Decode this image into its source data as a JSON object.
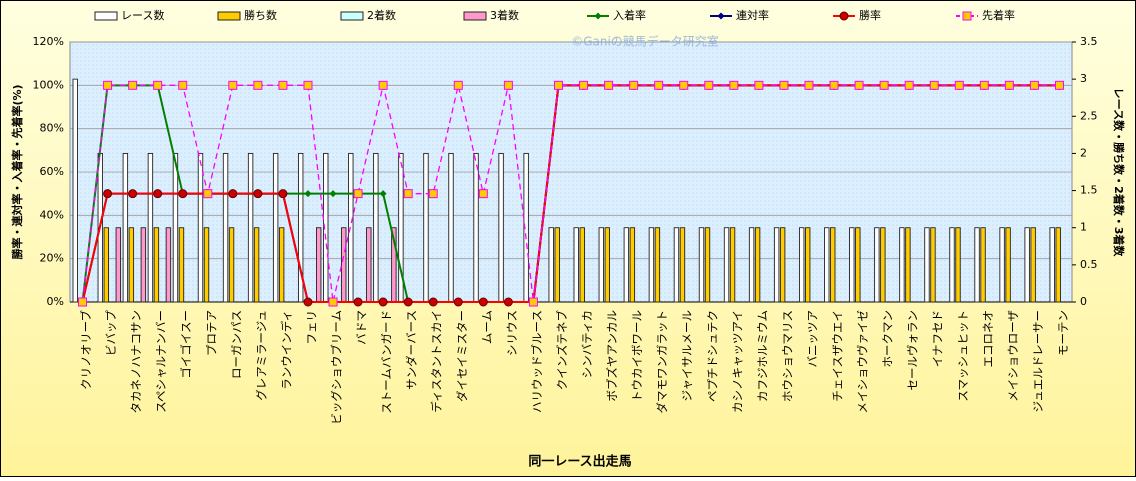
{
  "chart_data": {
    "type": "combo",
    "watermark": "©Ganiの競馬データ研究室",
    "x_label": "同一レース出走馬",
    "y_label": "勝率・連対率・入着率・先着率(%)",
    "y2_label": "レース数・勝ち数・2着数・3着数",
    "categories": [
      "クリノオリーブ",
      "ビバップ",
      "タカネノハナコサン",
      "スペシャルナンバー",
      "ゴイゴイスー",
      "プロテア",
      "ローガンパス",
      "グレアミラージュ",
      "ランウインディ",
      "フェリ",
      "ビッグショウブリーム",
      "バドマ",
      "ストームバンガード",
      "サンダーバース",
      "ディスタントスカイ",
      "ダイセイミスター",
      "ムーム",
      "シリウス",
      "ハリウッドブルース",
      "クインズテネブ",
      "シンバティカ",
      "ボブズヤアンカル",
      "トウカイボワール",
      "ダマモワンガラット",
      "ジャイサルメール",
      "ペプチドシュテク",
      "カシノキャッツアイ",
      "カフジホルミウム",
      "ホウショウマリス",
      "バニッツア",
      "チェイスザウエイ",
      "メイショウヴァイゼ",
      "ホークマン",
      "セールヴォラン",
      "イナフセド",
      "スマッシュヒット",
      "エコロネオ",
      "メイショウローザ",
      "ジュエルドレーサー",
      "モーテン"
    ],
    "ylim": [
      0,
      120
    ],
    "yticks": [
      {
        "value": 0,
        "label": "0%"
      },
      {
        "value": 20,
        "label": "20%"
      },
      {
        "value": 40,
        "label": "40%"
      },
      {
        "value": 60,
        "label": "60%"
      },
      {
        "value": 80,
        "label": "80%"
      },
      {
        "value": 100,
        "label": "100%"
      },
      {
        "value": 120,
        "label": "120%"
      }
    ],
    "y2lim": [
      0,
      3.5
    ],
    "y2ticks": [
      0,
      0.5,
      1,
      1.5,
      2,
      2.5,
      3,
      3.5
    ],
    "grid": true,
    "series": [
      {
        "name": "レース数",
        "type": "bar",
        "axis": "y2",
        "color": "#ffffff",
        "values": [
          3,
          2,
          2,
          2,
          2,
          2,
          2,
          2,
          2,
          2,
          2,
          2,
          2,
          2,
          2,
          2,
          2,
          2,
          2,
          1,
          1,
          1,
          1,
          1,
          1,
          1,
          1,
          1,
          1,
          1,
          1,
          1,
          1,
          1,
          1,
          1,
          1,
          1,
          1,
          1
        ]
      },
      {
        "name": "勝ち数",
        "type": "bar",
        "axis": "y2",
        "color": "#ffcc00",
        "values": [
          0,
          1,
          1,
          1,
          1,
          1,
          1,
          1,
          1,
          0,
          0,
          0,
          0,
          0,
          0,
          0,
          0,
          0,
          0,
          1,
          1,
          1,
          1,
          1,
          1,
          1,
          1,
          1,
          1,
          1,
          1,
          1,
          1,
          1,
          1,
          1,
          1,
          1,
          1,
          1
        ]
      },
      {
        "name": "2着数",
        "type": "bar",
        "axis": "y2",
        "color": "#ccffff",
        "values": [
          0,
          0,
          0,
          0,
          0,
          0,
          0,
          0,
          0,
          0,
          0,
          0,
          0,
          0,
          0,
          0,
          0,
          0,
          0,
          0,
          0,
          0,
          0,
          0,
          0,
          0,
          0,
          0,
          0,
          0,
          0,
          0,
          0,
          0,
          0,
          0,
          0,
          0,
          0,
          0
        ]
      },
      {
        "name": "3着数",
        "type": "bar",
        "axis": "y2",
        "color": "#ff99cc",
        "values": [
          0,
          1,
          1,
          1,
          0,
          0,
          0,
          0,
          0,
          1,
          1,
          1,
          1,
          0,
          0,
          0,
          0,
          0,
          0,
          0,
          0,
          0,
          0,
          0,
          0,
          0,
          0,
          0,
          0,
          0,
          0,
          0,
          0,
          0,
          0,
          0,
          0,
          0,
          0,
          0
        ]
      },
      {
        "name": "入着率",
        "type": "line",
        "marker": "diamond",
        "color": "#008000",
        "values": [
          0,
          100,
          100,
          100,
          50,
          50,
          50,
          50,
          50,
          50,
          50,
          50,
          50,
          0,
          0,
          0,
          0,
          0,
          0,
          100,
          100,
          100,
          100,
          100,
          100,
          100,
          100,
          100,
          100,
          100,
          100,
          100,
          100,
          100,
          100,
          100,
          100,
          100,
          100,
          100
        ]
      },
      {
        "name": "連対率",
        "type": "line",
        "marker": "diamond",
        "color": "#000080",
        "values": [
          0,
          50,
          50,
          50,
          50,
          50,
          50,
          50,
          50,
          0,
          0,
          0,
          0,
          0,
          0,
          0,
          0,
          0,
          0,
          100,
          100,
          100,
          100,
          100,
          100,
          100,
          100,
          100,
          100,
          100,
          100,
          100,
          100,
          100,
          100,
          100,
          100,
          100,
          100,
          100
        ]
      },
      {
        "name": "勝率",
        "type": "line",
        "marker": "circle",
        "color": "#ff0000",
        "values": [
          0,
          50,
          50,
          50,
          50,
          50,
          50,
          50,
          50,
          0,
          0,
          0,
          0,
          0,
          0,
          0,
          0,
          0,
          0,
          100,
          100,
          100,
          100,
          100,
          100,
          100,
          100,
          100,
          100,
          100,
          100,
          100,
          100,
          100,
          100,
          100,
          100,
          100,
          100,
          100
        ]
      },
      {
        "name": "先着率",
        "type": "line",
        "marker": "square",
        "dashed": true,
        "color": "#ff00ff",
        "values": [
          0,
          100,
          100,
          100,
          100,
          50,
          100,
          100,
          100,
          100,
          0,
          50,
          100,
          50,
          50,
          100,
          50,
          100,
          0,
          100,
          100,
          100,
          100,
          100,
          100,
          100,
          100,
          100,
          100,
          100,
          100,
          100,
          100,
          100,
          100,
          100,
          100,
          100,
          100,
          100
        ]
      }
    ]
  }
}
